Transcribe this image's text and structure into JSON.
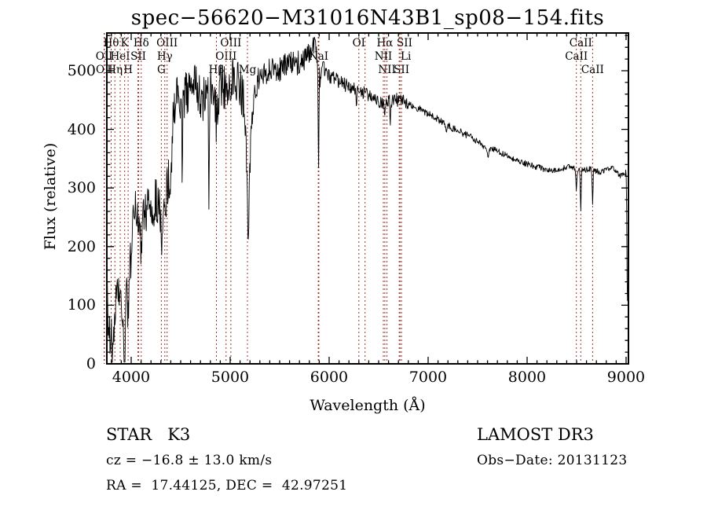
{
  "chart_data": {
    "type": "line",
    "title": "spec−56620−M31016N43B1_sp08−154.fits",
    "xlabel": "Wavelength (Å)",
    "ylabel": "Flux (relative)",
    "x_ticks": [
      4000,
      5000,
      6000,
      7000,
      8000,
      9000
    ],
    "y_ticks": [
      0,
      100,
      200,
      300,
      400,
      500
    ],
    "x_minor_step": 100,
    "y_minor_step": 20,
    "x_range": [
      3754,
      9024
    ],
    "y_range": [
      0,
      564
    ],
    "grid": false,
    "legend": "none",
    "noise_seed": 987654321,
    "continuum_anchors": [
      [
        3754,
        150
      ],
      [
        3762,
        85
      ],
      [
        3770,
        45
      ],
      [
        3780,
        60
      ],
      [
        3790,
        50
      ],
      [
        3800,
        42
      ],
      [
        3815,
        18
      ],
      [
        3828,
        60
      ],
      [
        3842,
        95
      ],
      [
        3858,
        115
      ],
      [
        3872,
        130
      ],
      [
        3888,
        110
      ],
      [
        3902,
        75
      ],
      [
        3920,
        52
      ],
      [
        3936,
        60
      ],
      [
        3950,
        110
      ],
      [
        3968,
        130
      ],
      [
        3984,
        150
      ],
      [
        4000,
        190
      ],
      [
        4020,
        240
      ],
      [
        4045,
        258
      ],
      [
        4070,
        250
      ],
      [
        4100,
        238
      ],
      [
        4130,
        258
      ],
      [
        4165,
        268
      ],
      [
        4200,
        268
      ],
      [
        4240,
        278
      ],
      [
        4275,
        272
      ],
      [
        4305,
        258
      ],
      [
        4335,
        280
      ],
      [
        4365,
        300
      ],
      [
        4395,
        325
      ],
      [
        4412,
        360
      ],
      [
        4425,
        430
      ],
      [
        4440,
        448
      ],
      [
        4460,
        455
      ],
      [
        4480,
        462
      ],
      [
        4505,
        442
      ],
      [
        4535,
        452
      ],
      [
        4565,
        462
      ],
      [
        4600,
        470
      ],
      [
        4630,
        478
      ],
      [
        4660,
        475
      ],
      [
        4690,
        458
      ],
      [
        4720,
        448
      ],
      [
        4750,
        450
      ],
      [
        4780,
        462
      ],
      [
        4810,
        468
      ],
      [
        4840,
        458
      ],
      [
        4870,
        452
      ],
      [
        4900,
        470
      ],
      [
        4930,
        473
      ],
      [
        4960,
        470
      ],
      [
        4990,
        483
      ],
      [
        5020,
        490
      ],
      [
        5050,
        492
      ],
      [
        5080,
        483
      ],
      [
        5110,
        468
      ],
      [
        5140,
        442
      ],
      [
        5165,
        350
      ],
      [
        5180,
        272
      ],
      [
        5195,
        315
      ],
      [
        5215,
        400
      ],
      [
        5245,
        458
      ],
      [
        5275,
        480
      ],
      [
        5310,
        490
      ],
      [
        5345,
        495
      ],
      [
        5380,
        498
      ],
      [
        5420,
        498
      ],
      [
        5460,
        505
      ],
      [
        5500,
        503
      ],
      [
        5540,
        508
      ],
      [
        5580,
        507
      ],
      [
        5620,
        513
      ],
      [
        5660,
        512
      ],
      [
        5700,
        517
      ],
      [
        5740,
        517
      ],
      [
        5780,
        527
      ],
      [
        5820,
        535
      ],
      [
        5855,
        538
      ],
      [
        5880,
        515
      ],
      [
        5900,
        492
      ],
      [
        5925,
        495
      ],
      [
        5955,
        495
      ],
      [
        6000,
        490
      ],
      [
        6050,
        486
      ],
      [
        6100,
        482
      ],
      [
        6150,
        477
      ],
      [
        6200,
        472
      ],
      [
        6255,
        468
      ],
      [
        6310,
        466
      ],
      [
        6360,
        461
      ],
      [
        6410,
        457
      ],
      [
        6460,
        453
      ],
      [
        6510,
        449
      ],
      [
        6555,
        444
      ],
      [
        6600,
        451
      ],
      [
        6650,
        449
      ],
      [
        6700,
        451
      ],
      [
        6750,
        447
      ],
      [
        6800,
        444
      ],
      [
        6855,
        439
      ],
      [
        6910,
        435
      ],
      [
        6965,
        430
      ],
      [
        7020,
        425
      ],
      [
        7080,
        419
      ],
      [
        7140,
        413
      ],
      [
        7200,
        407
      ],
      [
        7260,
        401
      ],
      [
        7320,
        396
      ],
      [
        7380,
        391
      ],
      [
        7440,
        386
      ],
      [
        7500,
        380
      ],
      [
        7555,
        373
      ],
      [
        7600,
        366
      ],
      [
        7645,
        368
      ],
      [
        7700,
        363
      ],
      [
        7760,
        358
      ],
      [
        7820,
        353
      ],
      [
        7880,
        348
      ],
      [
        7940,
        344
      ],
      [
        8000,
        341
      ],
      [
        8060,
        338
      ],
      [
        8120,
        335
      ],
      [
        8180,
        332
      ],
      [
        8240,
        330
      ],
      [
        8300,
        329
      ],
      [
        8355,
        333
      ],
      [
        8410,
        337
      ],
      [
        8465,
        334
      ],
      [
        8520,
        331
      ],
      [
        8575,
        330
      ],
      [
        8630,
        333
      ],
      [
        8685,
        330
      ],
      [
        8740,
        327
      ],
      [
        8795,
        330
      ],
      [
        8850,
        337
      ],
      [
        8900,
        328
      ],
      [
        8945,
        321
      ],
      [
        8980,
        324
      ],
      [
        9000,
        328
      ],
      [
        9004,
        310
      ],
      [
        9008,
        190
      ],
      [
        9012,
        108
      ],
      [
        9018,
        102
      ],
      [
        9024,
        100
      ]
    ],
    "absorption_dips": [
      [
        3934,
        55,
        7
      ],
      [
        3969,
        48,
        7
      ],
      [
        4102,
        42,
        7
      ],
      [
        4227,
        28,
        6
      ],
      [
        4305,
        38,
        9
      ],
      [
        4340,
        36,
        7
      ],
      [
        4516,
        110,
        4
      ],
      [
        4785,
        235,
        3
      ],
      [
        4861,
        60,
        5
      ],
      [
        5185,
        55,
        6
      ],
      [
        5893,
        185,
        4
      ],
      [
        6276,
        20,
        4
      ],
      [
        6563,
        30,
        5
      ],
      [
        6618,
        45,
        4
      ],
      [
        7185,
        14,
        8
      ],
      [
        7605,
        16,
        6
      ],
      [
        8498,
        36,
        4
      ],
      [
        8542,
        72,
        4
      ],
      [
        8662,
        62,
        4
      ]
    ],
    "noise_regions": [
      [
        3754,
        4412,
        40
      ],
      [
        4412,
        5140,
        40
      ],
      [
        5140,
        5250,
        26
      ],
      [
        5250,
        5950,
        22
      ],
      [
        5950,
        6800,
        12
      ],
      [
        6800,
        7600,
        6
      ],
      [
        7600,
        8990,
        5
      ],
      [
        8990,
        9024,
        6
      ]
    ],
    "line_markers": [
      3727,
      3729,
      3798,
      3835,
      3889,
      3934,
      3969,
      4068,
      4076,
      4102,
      4305,
      4340,
      4363,
      4861,
      4959,
      5007,
      5175,
      5890,
      5896,
      6300,
      6363,
      6548,
      6563,
      6584,
      6708,
      6716,
      6731,
      8498,
      8542,
      8662
    ],
    "line_labels": [
      {
        "text": "Hθ",
        "wavelength": 3798,
        "row": 1
      },
      {
        "text": "K",
        "wavelength": 3934,
        "row": 1
      },
      {
        "text": "Hδ",
        "wavelength": 4102,
        "row": 1
      },
      {
        "text": "OIII",
        "wavelength": 4363,
        "row": 1
      },
      {
        "text": "OIII",
        "wavelength": 5007,
        "row": 1
      },
      {
        "text": "OI",
        "wavelength": 6300,
        "row": 1
      },
      {
        "text": "Hα",
        "wavelength": 6563,
        "row": 1
      },
      {
        "text": "SII",
        "wavelength": 6762,
        "row": 1
      },
      {
        "text": "CaII",
        "wavelength": 8542,
        "row": 1
      },
      {
        "text": "OII",
        "wavelength": 3727,
        "row": 2
      },
      {
        "text": "HeI",
        "wavelength": 3889,
        "row": 2
      },
      {
        "text": "SII",
        "wavelength": 4072,
        "row": 2
      },
      {
        "text": "Hγ",
        "wavelength": 4340,
        "row": 2
      },
      {
        "text": "OIII",
        "wavelength": 4959,
        "row": 2
      },
      {
        "text": "NaI",
        "wavelength": 5893,
        "row": 2
      },
      {
        "text": "NII",
        "wavelength": 6548,
        "row": 2
      },
      {
        "text": "Li",
        "wavelength": 6775,
        "row": 2
      },
      {
        "text": "CaII",
        "wavelength": 8498,
        "row": 2
      },
      {
        "text": "OII",
        "wavelength": 3729,
        "row": 3
      },
      {
        "text": "Hη",
        "wavelength": 3835,
        "row": 3
      },
      {
        "text": "H",
        "wavelength": 3969,
        "row": 3
      },
      {
        "text": "G",
        "wavelength": 4305,
        "row": 3
      },
      {
        "text": "Hβ",
        "wavelength": 4861,
        "row": 3
      },
      {
        "text": "Mg",
        "wavelength": 5175,
        "row": 3
      },
      {
        "text": "NII",
        "wavelength": 6584,
        "row": 3
      },
      {
        "text": "SII",
        "wavelength": 6731,
        "row": 3
      },
      {
        "text": "CaII",
        "wavelength": 8662,
        "row": 3
      }
    ]
  },
  "annotations": {
    "object_class": "STAR   K3",
    "survey": "LAMOST DR3",
    "cz": "cz = −16.8 ± 13.0 km/s",
    "obs_date": "Obs−Date: 20131123",
    "ra_dec": "RA =  17.44125, DEC =  42.97251"
  },
  "colors": {
    "spectrum": "#000000",
    "marker_line": "#9c342c",
    "frame": "#000000",
    "background": "#ffffff"
  }
}
